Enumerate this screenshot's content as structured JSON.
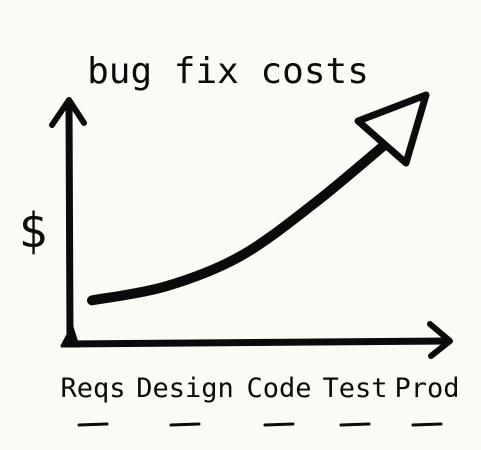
{
  "chart_data": {
    "type": "line",
    "title": "bug fix costs",
    "ylabel": "$",
    "xlabel": "",
    "categories": [
      "Reqs",
      "Design",
      "Code",
      "Test",
      "Prod"
    ],
    "series": [
      {
        "values": [
          1,
          1.8,
          3.5,
          6.5,
          10
        ]
      }
    ],
    "ylim": [
      0,
      10
    ],
    "grid": false,
    "legend": "none"
  },
  "colors": {
    "ink": "#0b0b0b",
    "paper": "#fbfaf5"
  }
}
